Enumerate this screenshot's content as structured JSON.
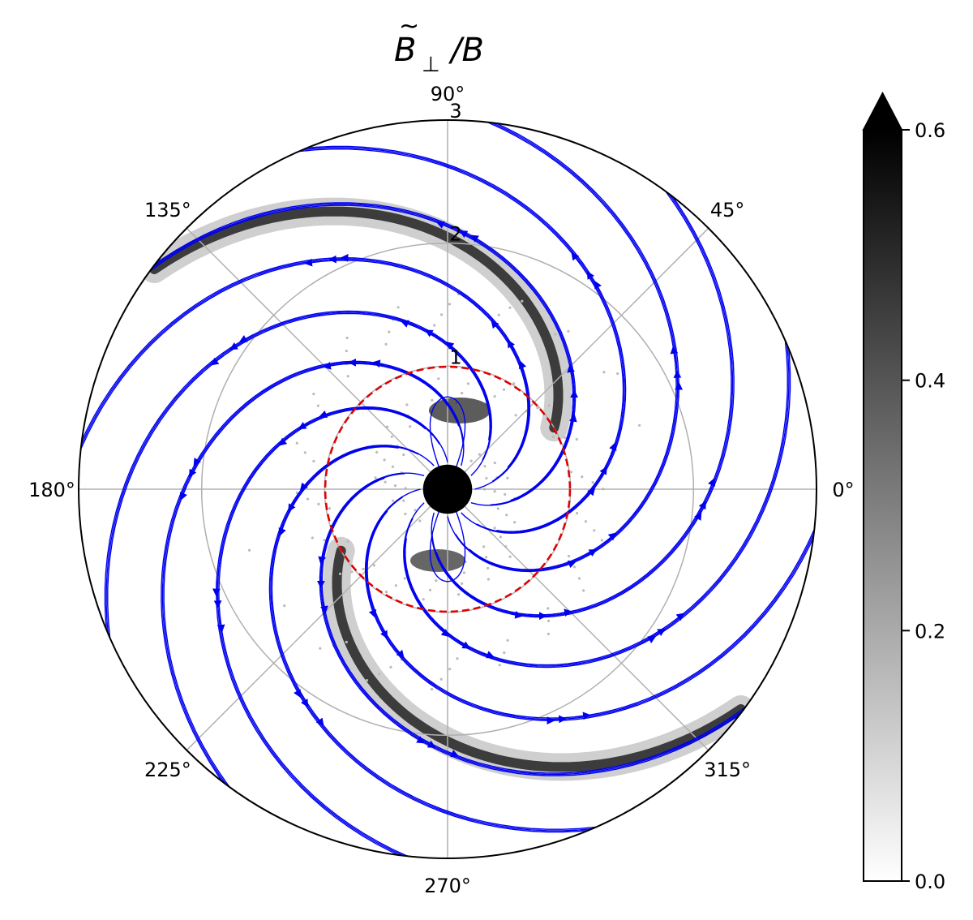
{
  "chart_data": {
    "type": "polar",
    "title": "B̃⊥/B",
    "title_parts": {
      "symbol": "B",
      "accent": "~",
      "subscript": "⊥",
      "denominator": "/B"
    },
    "angular_ticks": [
      "0°",
      "45°",
      "90°",
      "135°",
      "180°",
      "225°",
      "270°",
      "315°"
    ],
    "radial_ticks": [
      "1",
      "2",
      "3"
    ],
    "rlim": [
      0,
      3
    ],
    "grid": true,
    "dashed_circle": {
      "r": 1.0,
      "color": "#e00000"
    },
    "inner_disk": {
      "r": 0.2,
      "color": "#000000"
    },
    "spiral_arms": [
      {
        "start_angle_deg": 30,
        "r_start": 1.0,
        "r_end": 3.0,
        "direction": "counterclockwise"
      },
      {
        "start_angle_deg": 210,
        "r_start": 1.0,
        "r_end": 3.0,
        "direction": "counterclockwise"
      }
    ],
    "streamline_color": "#0000ee",
    "colorbar": {
      "ticks": [
        "0.0",
        "0.2",
        "0.4",
        "0.6"
      ],
      "range": [
        0.0,
        0.6
      ],
      "extend": "max",
      "cmap": "gray_r"
    }
  }
}
